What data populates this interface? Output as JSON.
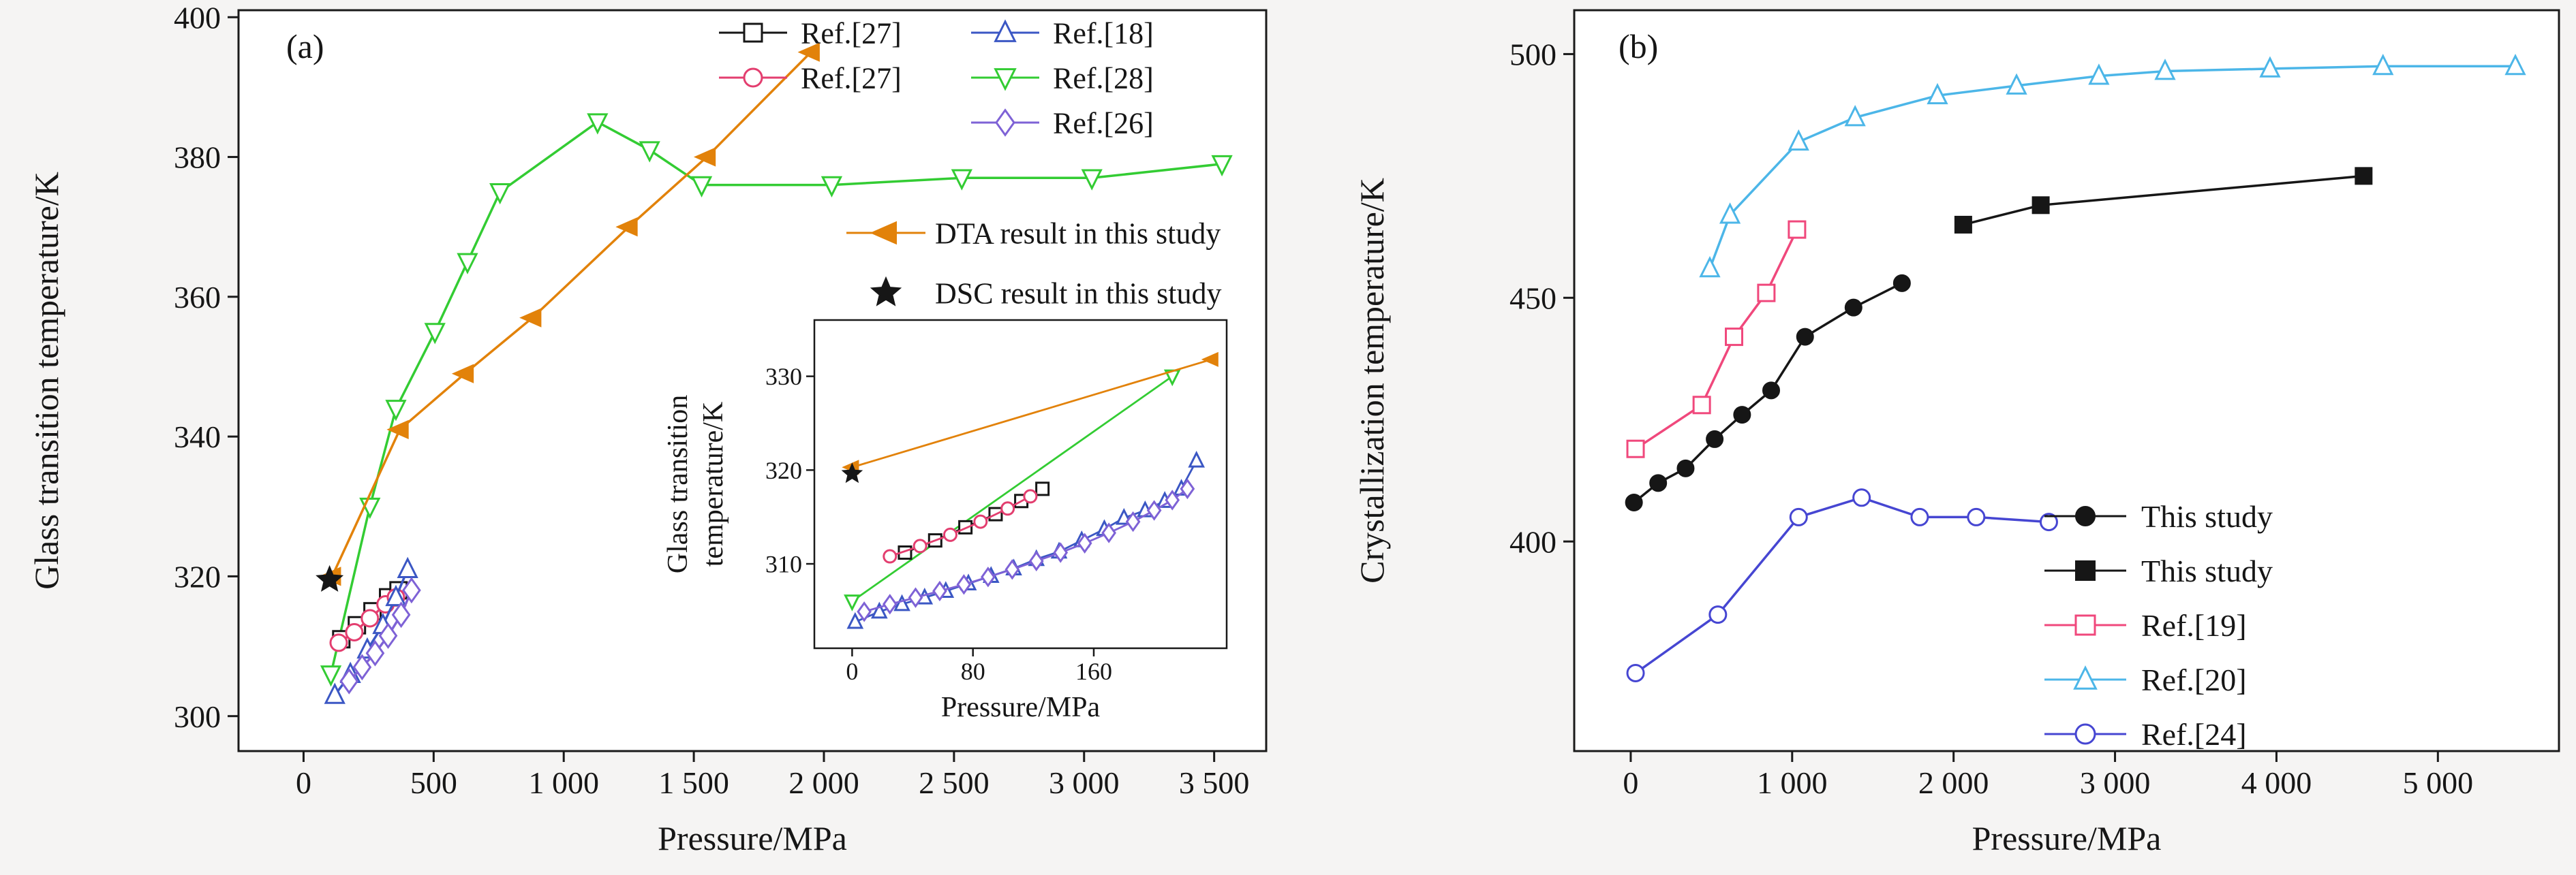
{
  "figure": {
    "panel_a_label": "(a)",
    "panel_b_label": "(b)"
  },
  "chart_data": [
    {
      "id": "a",
      "type": "line",
      "panel_label": "(a)",
      "xlabel": "Pressure/MPa",
      "ylabel": "Glass transition temperature/K",
      "xlim": [
        -250,
        3700
      ],
      "ylim": [
        295,
        401
      ],
      "xticks": [
        0,
        500,
        1000,
        1500,
        2000,
        2500,
        3000,
        3500
      ],
      "xtick_labels": [
        "0",
        "500",
        "1 000",
        "1 500",
        "2 000",
        "2 500",
        "3 000",
        "3 500"
      ],
      "yticks": [
        300,
        320,
        340,
        360,
        380,
        400
      ],
      "ytick_labels": [
        "300",
        "320",
        "340",
        "360",
        "380",
        "400"
      ],
      "series": [
        {
          "name": "Ref.[28]",
          "label": "Ref.[28]",
          "marker": "open-triangle-down",
          "color": "#33cc33",
          "line": true,
          "points": [
            [
              105,
              306
            ],
            [
              255,
              330
            ],
            [
              355,
              344
            ],
            [
              505,
              355
            ],
            [
              630,
              365
            ],
            [
              755,
              375
            ],
            [
              1130,
              385
            ],
            [
              1330,
              381
            ],
            [
              1530,
              376
            ],
            [
              2030,
              376
            ],
            [
              2530,
              377
            ],
            [
              3030,
              377
            ],
            [
              3530,
              379
            ]
          ]
        },
        {
          "name": "DTA result in this study",
          "label": "DTA result in this study",
          "marker": "filled-left-triangle",
          "color": "#e2820a",
          "line": true,
          "points": [
            [
              110,
              320
            ],
            [
              370,
              341
            ],
            [
              620,
              349
            ],
            [
              880,
              357
            ],
            [
              1250,
              370
            ],
            [
              1550,
              380
            ],
            [
              1950,
              395
            ]
          ]
        },
        {
          "name": "Ref.[27] squares",
          "label": "Ref.[27]",
          "marker": "open-square",
          "color": "#161616",
          "line": true,
          "points": [
            [
              145,
              311
            ],
            [
              205,
              313
            ],
            [
              265,
              315
            ],
            [
              325,
              317
            ],
            [
              365,
              318
            ]
          ]
        },
        {
          "name": "Ref.[27] circles",
          "label": "Ref.[27]",
          "marker": "open-circle",
          "color": "#e33e6f",
          "line": true,
          "points": [
            [
              135,
              310.5
            ],
            [
              195,
              312
            ],
            [
              255,
              314
            ],
            [
              315,
              316
            ],
            [
              355,
              317
            ]
          ]
        },
        {
          "name": "Ref.[18]",
          "label": "Ref.[18]",
          "marker": "open-triangle-up",
          "color": "#3b57c4",
          "line": true,
          "points": [
            [
              120,
              303
            ],
            [
              180,
              306
            ],
            [
              245,
              309.5
            ],
            [
              305,
              313
            ],
            [
              355,
              317
            ],
            [
              400,
              321
            ]
          ]
        },
        {
          "name": "Ref.[26]",
          "label": "Ref.[26]",
          "marker": "open-diamond",
          "color": "#7e62d6",
          "line": true,
          "points": [
            [
              175,
              305
            ],
            [
              225,
              307
            ],
            [
              275,
              309
            ],
            [
              325,
              311.5
            ],
            [
              375,
              314.5
            ],
            [
              415,
              318
            ]
          ]
        },
        {
          "name": "DSC result in this study",
          "label": "DSC result in this study",
          "marker": "filled-star",
          "color": "#161616",
          "line": false,
          "points": [
            [
              100,
              319.5
            ]
          ]
        }
      ],
      "legend_grid": [
        {
          "label": "Ref.[27]",
          "marker": "open-square",
          "color": "#161616",
          "col": 0,
          "row": 0
        },
        {
          "label": "Ref.[27]",
          "marker": "open-circle",
          "color": "#e33e6f",
          "col": 0,
          "row": 1
        },
        {
          "label": "Ref.[18]",
          "marker": "open-triangle-up",
          "color": "#3b57c4",
          "col": 1,
          "row": 0
        },
        {
          "label": "Ref.[28]",
          "marker": "open-triangle-down",
          "color": "#33cc33",
          "col": 1,
          "row": 1
        },
        {
          "label": "Ref.[26]",
          "marker": "open-diamond",
          "color": "#7e62d6",
          "col": 1,
          "row": 2
        }
      ],
      "legend_extra": [
        {
          "label": "DTA result in this study",
          "marker": "filled-left-triangle",
          "color": "#e2820a",
          "line": true
        },
        {
          "label": "DSC result in this study",
          "marker": "filled-star",
          "color": "#161616",
          "line": false
        }
      ],
      "inset": {
        "xlabel": "Pressure/MPa",
        "ylabel_lines": [
          "Glass transition",
          "temperature/K"
        ],
        "xlim": [
          -25,
          248
        ],
        "ylim": [
          301,
          336
        ],
        "xticks": [
          0,
          80,
          160
        ],
        "xtick_labels": [
          "0",
          "80",
          "160"
        ],
        "yticks": [
          310,
          320,
          330
        ],
        "ytick_labels": [
          "310",
          "320",
          "330"
        ],
        "series": [
          {
            "name": "Ref.[28] inset",
            "marker": "open-triangle-down",
            "color": "#33cc33",
            "line": true,
            "points": [
              [
                0,
                306
              ],
              [
                212,
                330
              ]
            ]
          },
          {
            "name": "DTA inset",
            "marker": "filled-left-triangle",
            "color": "#e2820a",
            "line": true,
            "points": [
              [
                0,
                320.3
              ],
              [
                238,
                331.8
              ]
            ]
          },
          {
            "name": "Ref.[27] squares inset",
            "marker": "open-square",
            "color": "#161616",
            "line": true,
            "points": [
              [
                35,
                311.2
              ],
              [
                55,
                312.5
              ],
              [
                75,
                313.9
              ],
              [
                95,
                315.3
              ],
              [
                112,
                316.7
              ],
              [
                126,
                318
              ]
            ]
          },
          {
            "name": "Ref.[27] circles inset",
            "marker": "open-circle",
            "color": "#e33e6f",
            "line": true,
            "points": [
              [
                25,
                310.8
              ],
              [
                45,
                311.9
              ],
              [
                65,
                313.1
              ],
              [
                85,
                314.5
              ],
              [
                103,
                315.9
              ],
              [
                118,
                317.2
              ]
            ]
          },
          {
            "name": "Ref.[18] inset",
            "marker": "open-triangle-up",
            "color": "#3b57c4",
            "line": true,
            "points": [
              [
                2,
                303.8
              ],
              [
                18,
                304.9
              ],
              [
                33,
                305.7
              ],
              [
                48,
                306.4
              ],
              [
                62,
                307.1
              ],
              [
                77,
                307.9
              ],
              [
                92,
                308.7
              ],
              [
                107,
                309.5
              ],
              [
                122,
                310.5
              ],
              [
                137,
                311.3
              ],
              [
                152,
                312.5
              ],
              [
                167,
                313.7
              ],
              [
                180,
                314.9
              ],
              [
                194,
                315.7
              ],
              [
                207,
                316.7
              ],
              [
                218,
                318
              ],
              [
                228,
                321
              ]
            ]
          },
          {
            "name": "Ref.[26] inset",
            "marker": "open-diamond",
            "color": "#7e62d6",
            "line": true,
            "points": [
              [
                8,
                304.9
              ],
              [
                25,
                305.7
              ],
              [
                42,
                306.4
              ],
              [
                58,
                307.1
              ],
              [
                74,
                307.8
              ],
              [
                90,
                308.6
              ],
              [
                106,
                309.4
              ],
              [
                122,
                310.3
              ],
              [
                138,
                311.2
              ],
              [
                154,
                312.2
              ],
              [
                170,
                313.3
              ],
              [
                186,
                314.5
              ],
              [
                200,
                315.7
              ],
              [
                212,
                316.8
              ],
              [
                222,
                318
              ]
            ]
          },
          {
            "name": "DSC inset",
            "marker": "filled-star",
            "color": "#161616",
            "line": false,
            "points": [
              [
                0,
                319.6
              ]
            ]
          }
        ]
      }
    },
    {
      "id": "b",
      "type": "line",
      "panel_label": "(b)",
      "xlabel": "Pressure/MPa",
      "ylabel": "Crystallization temperature/K",
      "xlim": [
        -350,
        5750
      ],
      "ylim": [
        357,
        509
      ],
      "xticks": [
        0,
        1000,
        2000,
        3000,
        4000,
        5000
      ],
      "xtick_labels": [
        "0",
        "1 000",
        "2 000",
        "3 000",
        "4 000",
        "5 000"
      ],
      "yticks": [
        400,
        450,
        500
      ],
      "ytick_labels": [
        "400",
        "450",
        "500"
      ],
      "series": [
        {
          "name": "Ref.[20]",
          "label": "Ref.[20]",
          "marker": "open-triangle-up",
          "color": "#4cb6e8",
          "line": true,
          "points": [
            [
              490,
              456
            ],
            [
              615,
              467
            ],
            [
              1040,
              482
            ],
            [
              1390,
              487
            ],
            [
              1900,
              491.5
            ],
            [
              2390,
              493.5
            ],
            [
              2900,
              495.5
            ],
            [
              3310,
              496.5
            ],
            [
              3960,
              497
            ],
            [
              4660,
              497.5
            ],
            [
              5480,
              497.5
            ]
          ]
        },
        {
          "name": "Ref.[19]",
          "label": "Ref.[19]",
          "marker": "open-square",
          "color": "#f0487c",
          "line": true,
          "points": [
            [
              30,
              419
            ],
            [
              440,
              428
            ],
            [
              640,
              442
            ],
            [
              840,
              451
            ],
            [
              1030,
              464
            ]
          ]
        },
        {
          "name": "This study circles",
          "label": "This study",
          "marker": "filled-circle",
          "color": "#161616",
          "line": true,
          "points": [
            [
              20,
              408
            ],
            [
              170,
              412
            ],
            [
              340,
              415
            ],
            [
              520,
              421
            ],
            [
              690,
              426
            ],
            [
              870,
              431
            ],
            [
              1080,
              442
            ],
            [
              1380,
              448
            ],
            [
              1680,
              453
            ]
          ]
        },
        {
          "name": "This study squares",
          "label": "This study",
          "marker": "filled-square",
          "color": "#161616",
          "line": true,
          "points": [
            [
              2060,
              465
            ],
            [
              2540,
              469
            ],
            [
              4540,
              475
            ]
          ]
        },
        {
          "name": "Ref.[24]",
          "label": "Ref.[24]",
          "marker": "open-circle",
          "color": "#4646d2",
          "line": true,
          "points": [
            [
              30,
              373
            ],
            [
              540,
              385
            ],
            [
              1040,
              405
            ],
            [
              1430,
              409
            ],
            [
              1790,
              405
            ],
            [
              2140,
              405
            ],
            [
              2590,
              404
            ]
          ]
        }
      ],
      "legend": [
        {
          "label": "This study",
          "marker": "filled-circle",
          "color": "#161616",
          "line": true
        },
        {
          "label": "This study",
          "marker": "filled-square",
          "color": "#161616",
          "line": true
        },
        {
          "label": "Ref.[19]",
          "marker": "open-square",
          "color": "#f0487c",
          "line": true
        },
        {
          "label": "Ref.[20]",
          "marker": "open-triangle-up",
          "color": "#4cb6e8",
          "line": true
        },
        {
          "label": "Ref.[24]",
          "marker": "open-circle",
          "color": "#4646d2",
          "line": true
        }
      ]
    }
  ]
}
